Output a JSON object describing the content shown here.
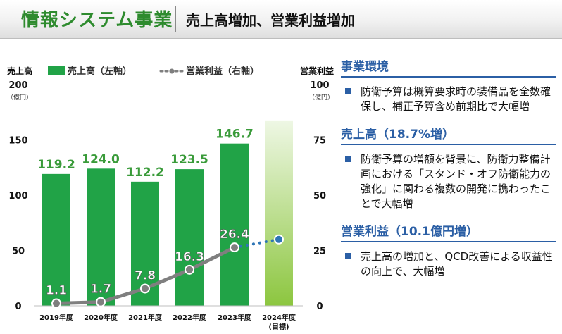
{
  "header": {
    "section": "情報システム事業",
    "headline": "売上高増加、営業利益増加"
  },
  "colors": {
    "bar": "#21a347",
    "target_bar_top": "#eef7e4",
    "target_bar_bottom": "#8cc63f",
    "profit_line": "#7f7f7f",
    "profit_forecast": "#2e75b6",
    "heading_blue": "#2b5fa5",
    "sales_label": "#3a9b3a"
  },
  "chart_data": {
    "type": "bar",
    "categories": [
      "2019年度",
      "2020年度",
      "2021年度",
      "2022年度",
      "2023年度",
      "2024年度\n(目標)"
    ],
    "series": [
      {
        "name": "売上高（左軸）",
        "type": "bar",
        "axis": "left",
        "values": [
          119.2,
          124.0,
          112.2,
          123.5,
          146.7,
          167
        ],
        "data_labels": [
          "119.2",
          "124.0",
          "112.2",
          "123.5",
          "146.7",
          ""
        ]
      },
      {
        "name": "営業利益（右軸）",
        "type": "line",
        "axis": "right",
        "values": [
          1.1,
          1.7,
          7.8,
          16.3,
          26.4,
          30
        ],
        "data_labels": [
          "1.1",
          "1.7",
          "7.8",
          "16.3",
          "26.4",
          ""
        ]
      }
    ],
    "left_axis": {
      "title": "売上高",
      "unit": "（億円）",
      "ticks": [
        0,
        50,
        100,
        150,
        200
      ],
      "range": [
        0,
        200
      ]
    },
    "right_axis": {
      "title": "営業利益",
      "unit": "（億円）",
      "ticks": [
        0,
        25,
        50,
        75,
        100
      ],
      "range": [
        0,
        100
      ]
    },
    "grid": false,
    "legend_position": "top"
  },
  "panel": {
    "sections": [
      {
        "title": "事業環境",
        "text": "防衛予算は概算要求時の装備品を全数確保し、補正予算含め前期比で大幅増"
      },
      {
        "title": "売上高（18.7%増）",
        "text": "防衛予算の増額を背景に、防衛力整備計画における「スタンド・オフ防衛能力の強化」に関わる複数の開発に携わったことで大幅増"
      },
      {
        "title": "営業利益（10.1億円増）",
        "text": "売上高の増加と、QCD改善による収益性の向上で、大幅増"
      }
    ]
  }
}
